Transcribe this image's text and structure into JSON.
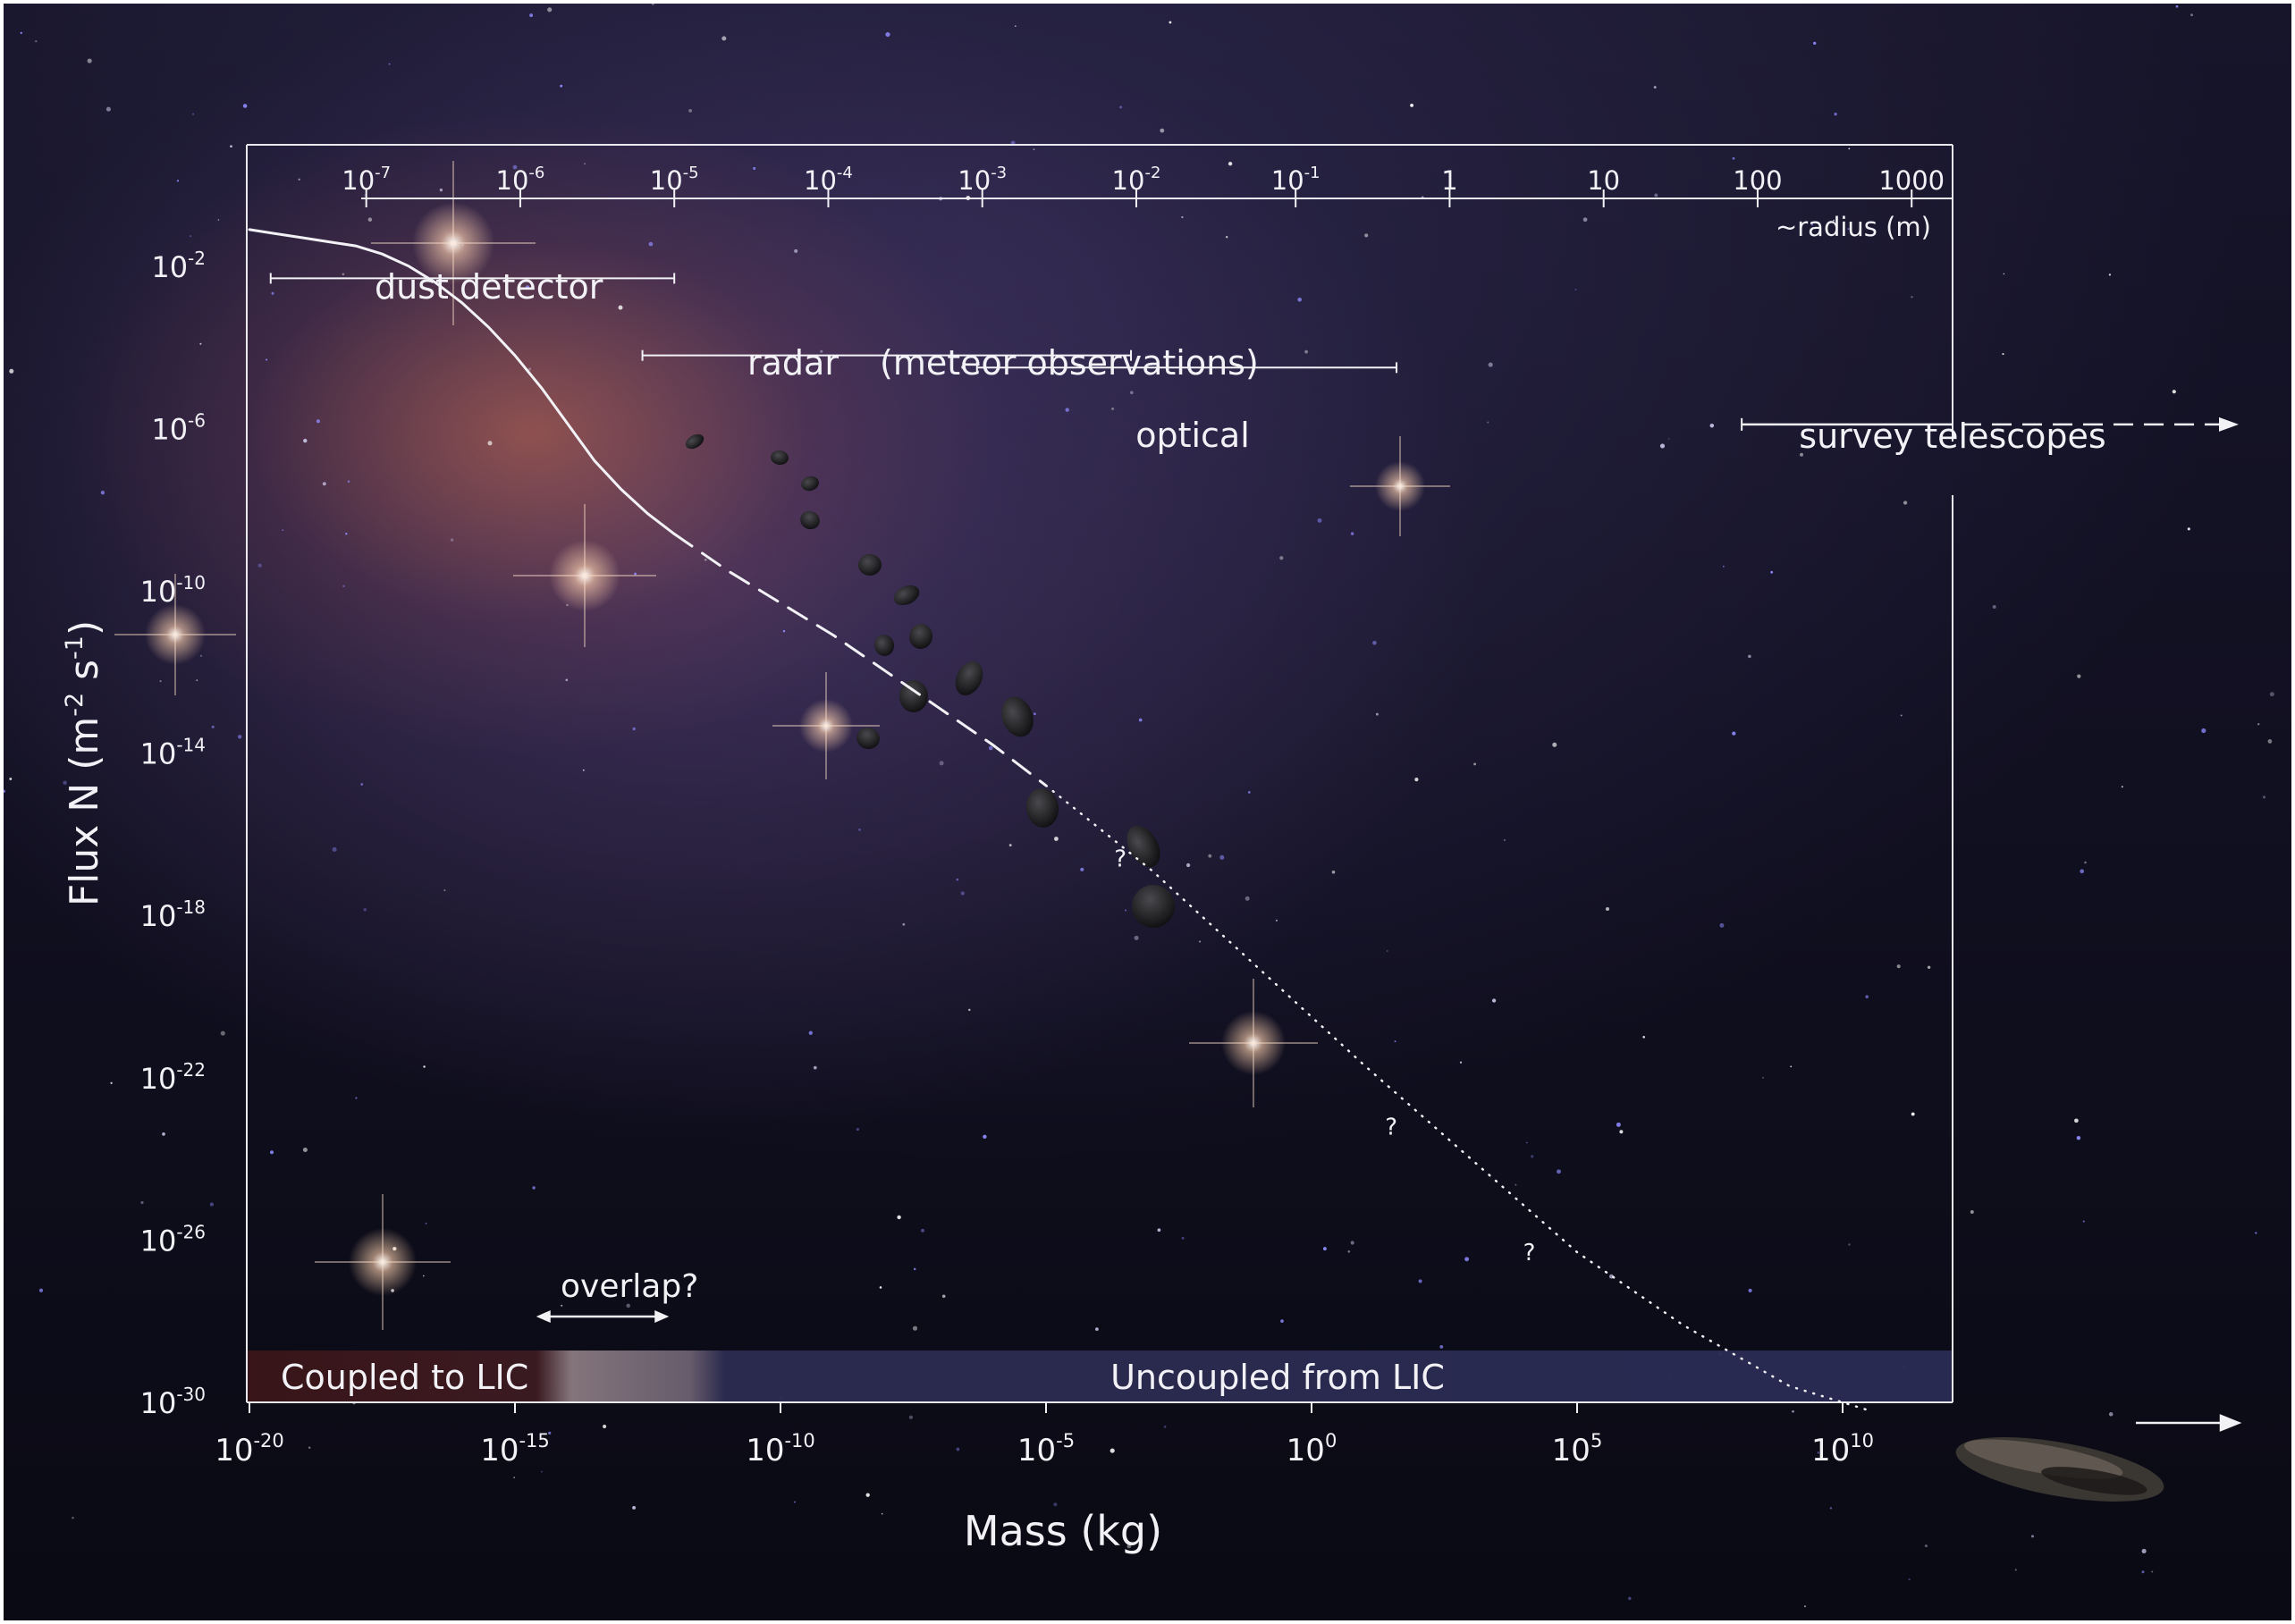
{
  "chart_data": {
    "type": "line",
    "x_axis": {
      "label": "Mass (kg)",
      "scale": "log",
      "range_log10": [
        -20,
        12
      ],
      "ticks": [
        {
          "log10": -20,
          "base": "10",
          "exp": "-20"
        },
        {
          "log10": -15,
          "base": "10",
          "exp": "-15"
        },
        {
          "log10": -10,
          "base": "10",
          "exp": "-10"
        },
        {
          "log10": -5,
          "base": "10",
          "exp": "-5"
        },
        {
          "log10": 0,
          "base": "10",
          "exp": "0"
        },
        {
          "log10": 5,
          "base": "10",
          "exp": "5"
        },
        {
          "log10": 10,
          "base": "10",
          "exp": "10"
        }
      ]
    },
    "y_axis": {
      "label_parts": {
        "pre": "Flux N (m",
        "e1": "-2",
        "mid": " s",
        "e2": "-1",
        "post": ")"
      },
      "scale": "log",
      "range_log10": [
        -30,
        1
      ],
      "ticks": [
        {
          "log10": -2,
          "base": "10",
          "exp": "-2"
        },
        {
          "log10": -6,
          "base": "10",
          "exp": "-6"
        },
        {
          "log10": -10,
          "base": "10",
          "exp": "-10"
        },
        {
          "log10": -14,
          "base": "10",
          "exp": "-14"
        },
        {
          "log10": -18,
          "base": "10",
          "exp": "-18"
        },
        {
          "log10": -22,
          "base": "10",
          "exp": "-22"
        },
        {
          "log10": -26,
          "base": "10",
          "exp": "-26"
        },
        {
          "log10": -30,
          "base": "10",
          "exp": "-30"
        }
      ]
    },
    "top_axis": {
      "label": "~radius (m)",
      "ticks": [
        {
          "mass_log10": -17.8,
          "base": "10",
          "exp": "-7"
        },
        {
          "mass_log10": -14.9,
          "base": "10",
          "exp": "-6"
        },
        {
          "mass_log10": -12.0,
          "base": "10",
          "exp": "-5"
        },
        {
          "mass_log10": -9.1,
          "base": "10",
          "exp": "-4"
        },
        {
          "mass_log10": -6.2,
          "base": "10",
          "exp": "-3"
        },
        {
          "mass_log10": -3.3,
          "base": "10",
          "exp": "-2"
        },
        {
          "mass_log10": -0.3,
          "base": "10",
          "exp": "-1"
        },
        {
          "mass_log10": 2.6,
          "base": "1",
          "exp": ""
        },
        {
          "mass_log10": 5.5,
          "base": "10",
          "exp": ""
        },
        {
          "mass_log10": 8.4,
          "base": "100",
          "exp": ""
        },
        {
          "mass_log10": 11.3,
          "base": "1000",
          "exp": ""
        }
      ]
    },
    "series": [
      {
        "style": "solid",
        "x_log10": [
          -20,
          -19.5,
          -19,
          -18.5,
          -18,
          -17.5,
          -17,
          -16.5,
          -16,
          -15.5,
          -15,
          -14.5,
          -14,
          -13.5,
          -13,
          -12.5,
          -12
        ],
        "y_log10": [
          -1.1,
          -1.2,
          -1.3,
          -1.4,
          -1.5,
          -1.7,
          -2.0,
          -2.4,
          -2.9,
          -3.5,
          -4.2,
          -5.0,
          -5.9,
          -6.8,
          -7.5,
          -8.1,
          -8.6
        ]
      },
      {
        "style": "dashed",
        "x_log10": [
          -12,
          -11,
          -10,
          -9,
          -8,
          -7,
          -6,
          -5
        ],
        "y_log10": [
          -8.6,
          -9.5,
          -10.3,
          -11.1,
          -12.0,
          -12.9,
          -13.8,
          -14.8
        ]
      },
      {
        "style": "dotted",
        "x_log10": [
          -5,
          -3,
          -1,
          1,
          3,
          5,
          7,
          9,
          10,
          10.5
        ],
        "y_log10": [
          -14.8,
          -16.9,
          -19.3,
          -21.7,
          -24.0,
          -26.3,
          -28.1,
          -29.6,
          -30.0,
          -30.2
        ]
      }
    ],
    "question_marks": [
      {
        "text": "?",
        "x_log10": -3.6,
        "y_log10": -16.8
      },
      {
        "text": "?",
        "x_log10": 1.5,
        "y_log10": -23.4
      },
      {
        "text": "?",
        "x_log10": 4.1,
        "y_log10": -26.5
      }
    ],
    "ranges": [
      {
        "label": "dust detector",
        "x_from_log10": -19.6,
        "x_to_log10": -12.0,
        "y_log10": -2.3
      },
      {
        "label": "radar",
        "label2": "(meteor observations)",
        "x_from_log10": -12.6,
        "x_to_log10": -3.4,
        "y_log10": -4.2
      },
      {
        "label": "optical",
        "x_from_log10": -6.3,
        "x_to_log10": 1.6,
        "y_log10": -4.5
      },
      {
        "label": "survey telescopes",
        "x_from_log10": 8.1,
        "x_to_log10": 12.0,
        "y_log10": -5.9,
        "extends_beyond": true
      }
    ],
    "overlap": {
      "label": "overlap?",
      "x_from_log10": -14.6,
      "x_to_log10": -12.1
    },
    "bands": [
      {
        "label": "Coupled to LIC",
        "x_from_log10": -20,
        "x_to_log10": -14.6
      },
      {
        "label": "Uncoupled from LIC",
        "x_from_log10": -12.1,
        "x_to_log10": 12.0
      }
    ],
    "colors": {
      "foreground": "#f2f2f6",
      "coupled_band": "#3a1518",
      "uncoupled_band": "#2a2c55",
      "nebula": "#c86e52"
    },
    "grid": false
  }
}
